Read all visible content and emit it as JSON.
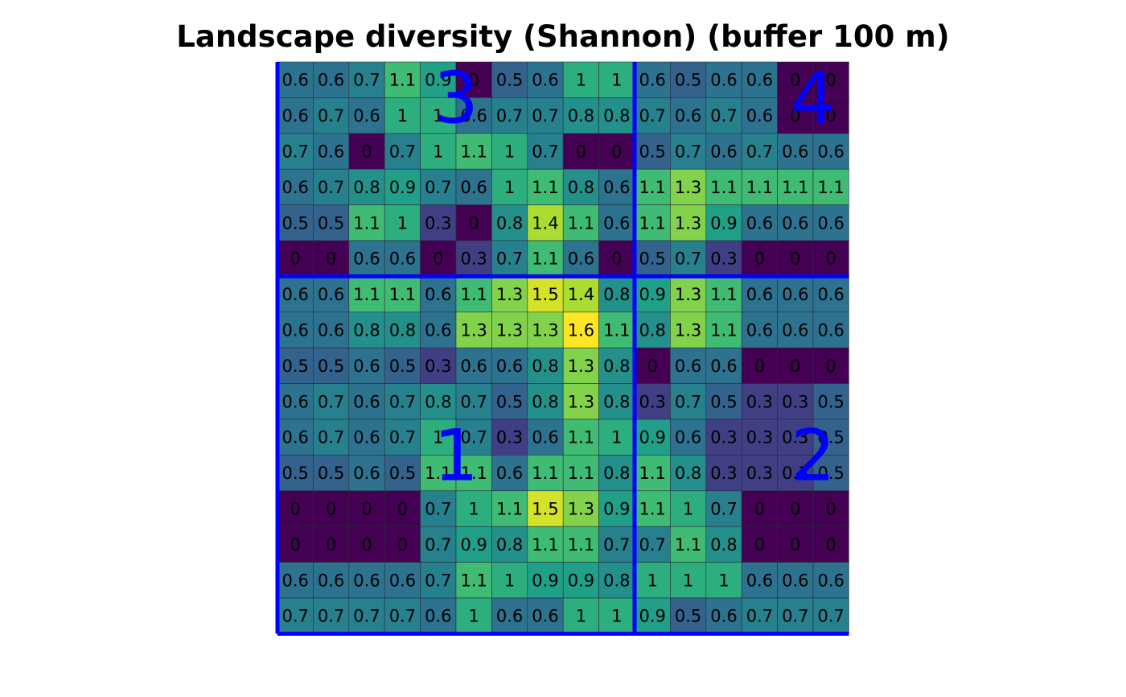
{
  "chart_data": {
    "type": "heatmap",
    "title": "Landscape diversity (Shannon) (buffer 100 m)",
    "rows": 16,
    "cols": 16,
    "values": [
      [
        0.6,
        0.6,
        0.7,
        1.1,
        0.9,
        0,
        0.5,
        0.6,
        1,
        1,
        0.6,
        0.5,
        0.6,
        0.6,
        0,
        0
      ],
      [
        0.6,
        0.7,
        0.6,
        1,
        1,
        0.6,
        0.7,
        0.7,
        0.8,
        0.8,
        0.7,
        0.6,
        0.7,
        0.6,
        0,
        0
      ],
      [
        0.7,
        0.6,
        0,
        0.7,
        1,
        1.1,
        1,
        0.7,
        0,
        0,
        0.5,
        0.7,
        0.6,
        0.7,
        0.6,
        0.6
      ],
      [
        0.6,
        0.7,
        0.8,
        0.9,
        0.7,
        0.6,
        1,
        1.1,
        0.8,
        0.6,
        1.1,
        1.3,
        1.1,
        1.1,
        1.1,
        1.1
      ],
      [
        0.5,
        0.5,
        1.1,
        1,
        0.3,
        0,
        0.8,
        1.4,
        1.1,
        0.6,
        1.1,
        1.3,
        0.9,
        0.6,
        0.6,
        0.6
      ],
      [
        0,
        0,
        0.6,
        0.6,
        0,
        0.3,
        0.7,
        1.1,
        0.6,
        0,
        0.5,
        0.7,
        0.3,
        0,
        0,
        0
      ],
      [
        0.6,
        0.6,
        1.1,
        1.1,
        0.6,
        1.1,
        1.3,
        1.5,
        1.4,
        0.8,
        0.9,
        1.3,
        1.1,
        0.6,
        0.6,
        0.6
      ],
      [
        0.6,
        0.6,
        0.8,
        0.8,
        0.6,
        1.3,
        1.3,
        1.3,
        1.6,
        1.1,
        0.8,
        1.3,
        1.1,
        0.6,
        0.6,
        0.6
      ],
      [
        0.5,
        0.5,
        0.6,
        0.5,
        0.3,
        0.6,
        0.6,
        0.8,
        1.3,
        0.8,
        0,
        0.6,
        0.6,
        0,
        0,
        0
      ],
      [
        0.6,
        0.7,
        0.6,
        0.7,
        0.8,
        0.7,
        0.5,
        0.8,
        1.3,
        0.8,
        0.3,
        0.7,
        0.5,
        0.3,
        0.3,
        0.5
      ],
      [
        0.6,
        0.7,
        0.6,
        0.7,
        1,
        0.7,
        0.3,
        0.6,
        1.1,
        1,
        0.9,
        0.6,
        0.3,
        0.3,
        0.3,
        0.5
      ],
      [
        0.5,
        0.5,
        0.6,
        0.5,
        1.1,
        1.1,
        0.6,
        1.1,
        1.1,
        0.8,
        1.1,
        0.8,
        0.3,
        0.3,
        0.3,
        0.5
      ],
      [
        0,
        0,
        0,
        0,
        0.7,
        1,
        1.1,
        1.5,
        1.3,
        0.9,
        1.1,
        1,
        0.7,
        0,
        0,
        0
      ],
      [
        0,
        0,
        0,
        0,
        0.7,
        0.9,
        0.8,
        1.1,
        1.1,
        0.7,
        0.7,
        1.1,
        0.8,
        0,
        0,
        0
      ],
      [
        0.6,
        0.6,
        0.6,
        0.6,
        0.7,
        1.1,
        1,
        0.9,
        0.9,
        0.8,
        1,
        1,
        1,
        0.6,
        0.6,
        0.6
      ],
      [
        0.7,
        0.7,
        0.7,
        0.7,
        0.6,
        1,
        0.6,
        0.6,
        1,
        1,
        0.9,
        0.5,
        0.6,
        0.7,
        0.7,
        0.7
      ]
    ],
    "color_range": [
      0,
      1.6
    ],
    "colormap": "viridis",
    "divider_color": "#0000ff",
    "quadrant_labels": [
      {
        "label": "3",
        "row": 1,
        "col": 5
      },
      {
        "label": "4",
        "row": 1,
        "col": 15
      },
      {
        "label": "1",
        "row": 11,
        "col": 5
      },
      {
        "label": "2",
        "row": 11,
        "col": 15
      }
    ],
    "split_row": 6,
    "split_col": 10
  }
}
